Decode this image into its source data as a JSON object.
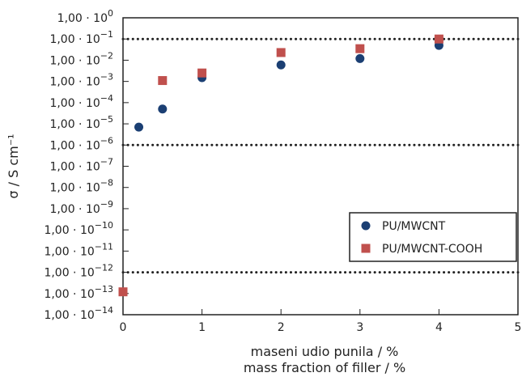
{
  "chart_data": {
    "type": "scatter",
    "xlabel": [
      "maseni udio punila / %",
      "mass fraction of filler / %"
    ],
    "ylabel": "σ / S cm⁻¹",
    "xlim": [
      0,
      5
    ],
    "ylim_exponent": [
      -14,
      0
    ],
    "y_scale": "log10",
    "x_ticks": [
      "0",
      "1",
      "2",
      "3",
      "4",
      "5"
    ],
    "y_tick_exponents": [
      0,
      -1,
      -2,
      -3,
      -4,
      -5,
      -6,
      -7,
      -8,
      -9,
      -10,
      -11,
      -12,
      -13,
      -14
    ],
    "y_tick_mantissa": "1,00 · 10",
    "reference_lines": [
      0.1,
      1e-06,
      1e-12
    ],
    "legend_position": "lower-right",
    "series": [
      {
        "name": "PU/MWCNT",
        "color": "#1b3f73",
        "marker": "circle",
        "x": [
          0.2,
          0.5,
          1,
          2,
          3,
          4
        ],
        "y": [
          7e-06,
          5e-05,
          0.0015,
          0.006,
          0.012,
          0.05
        ]
      },
      {
        "name": "PU/MWCNT-COOH",
        "color": "#c0504d",
        "marker": "square",
        "x": [
          0,
          0.5,
          1,
          2,
          3,
          4
        ],
        "y": [
          1.2e-13,
          0.0011,
          0.0025,
          0.023,
          0.035,
          0.1
        ]
      }
    ]
  }
}
